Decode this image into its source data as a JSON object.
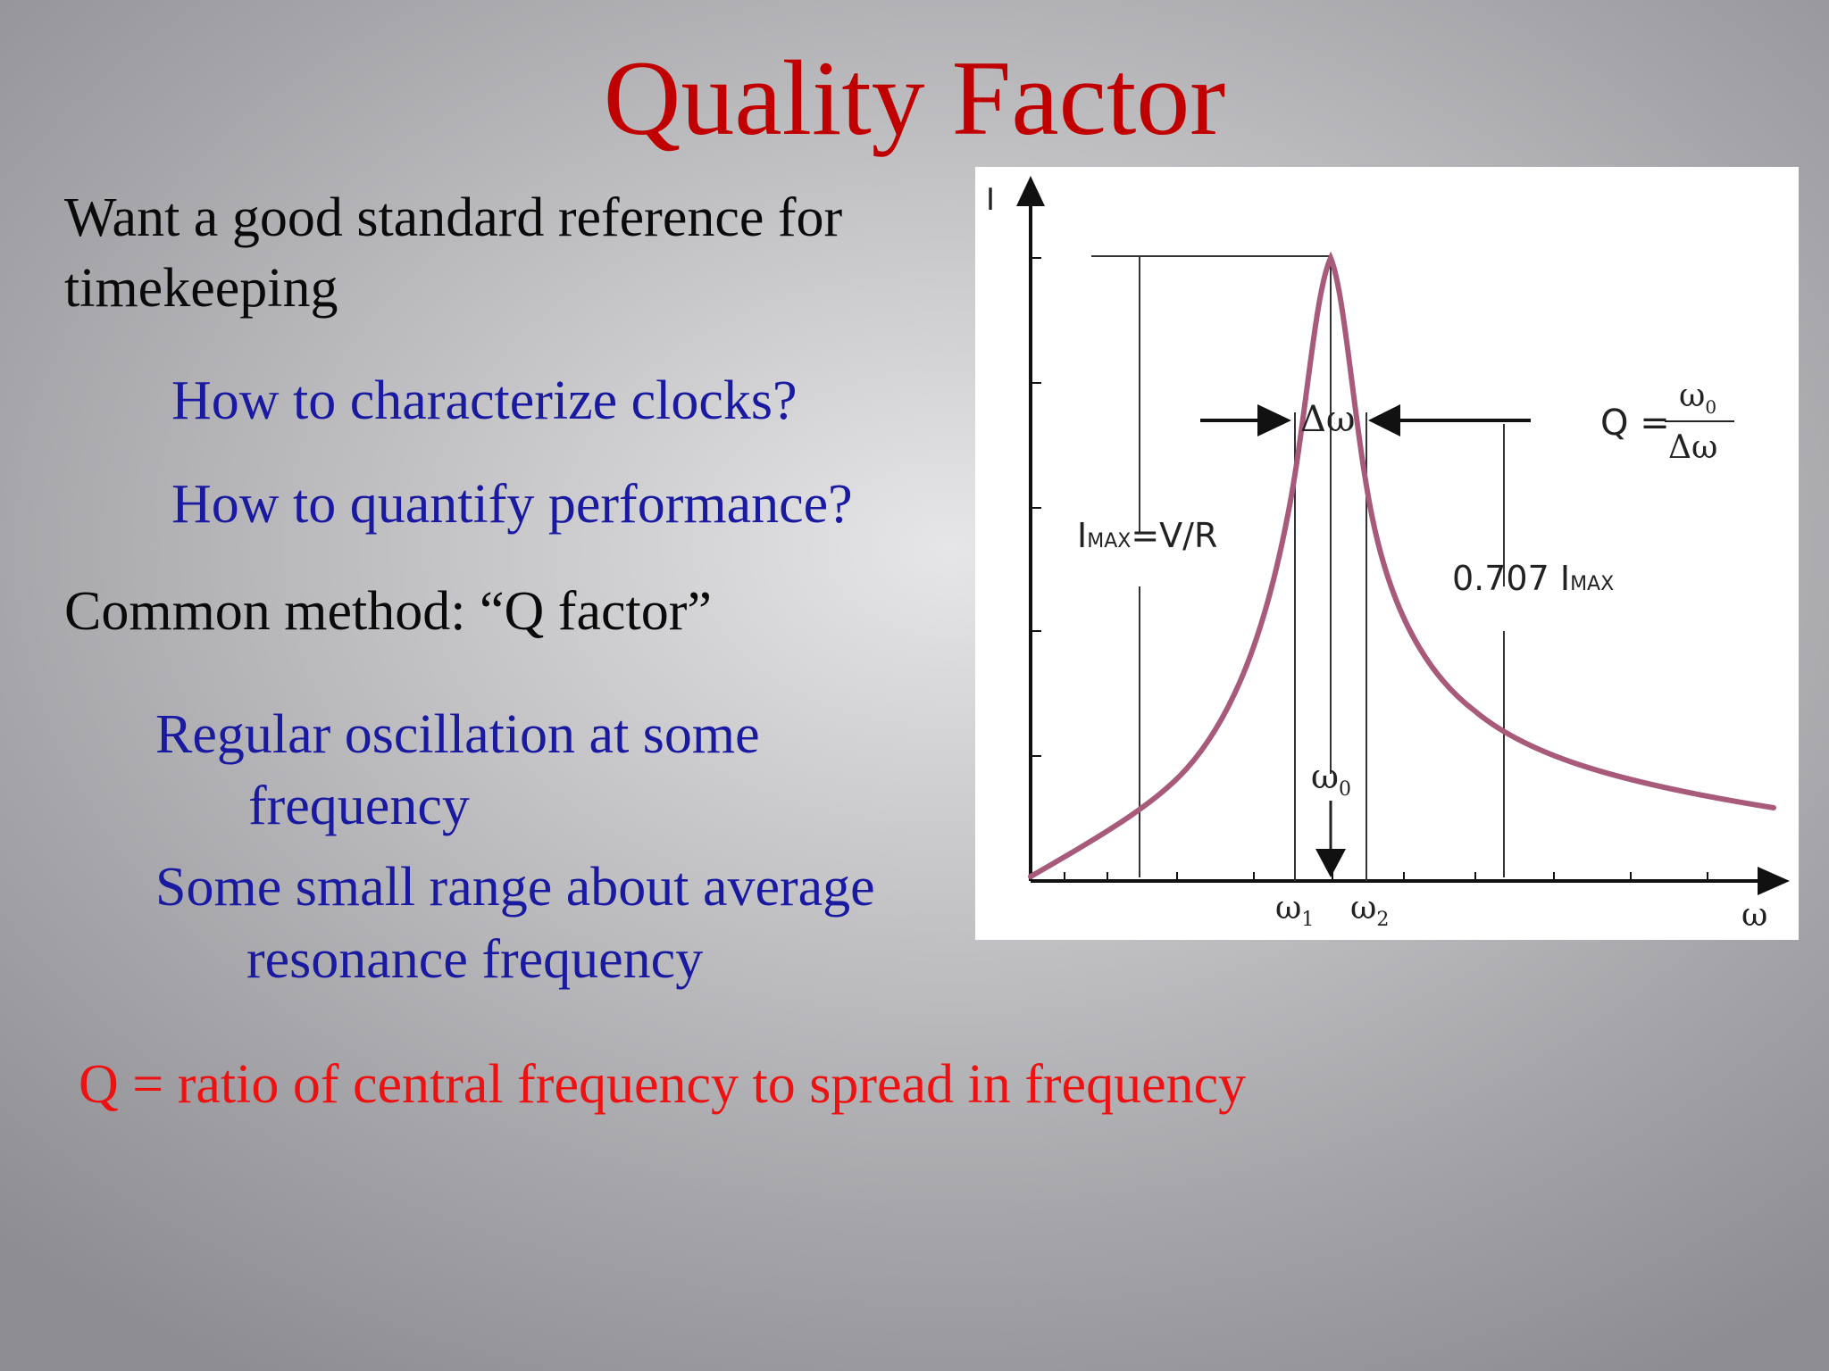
{
  "slide": {
    "title": "Quality Factor",
    "lines": {
      "intro_1": "Want a good standard reference for",
      "intro_2": "timekeeping",
      "q1": "How to characterize clocks?",
      "q2": "How to quantify performance?",
      "method": "Common method: “Q factor”",
      "b1_1": "Regular oscillation at some",
      "b1_2": "frequency",
      "b2_1": "Some small range about average",
      "b2_2": "resonance frequency",
      "conclusion": "Q = ratio of central frequency to spread in frequency"
    }
  },
  "figure": {
    "y_axis_label": "I",
    "x_axis_label": "ω",
    "imax_label": {
      "main": "I",
      "sub": "MAX",
      "rest": "=V/R"
    },
    "half_label": {
      "main": "0.707 I",
      "sub": "MAX"
    },
    "delta_label": "Δω",
    "omega0": {
      "main": "ω",
      "sub": "0"
    },
    "omega1": {
      "main": "ω",
      "sub": "1"
    },
    "omega2": {
      "main": "ω",
      "sub": "2"
    },
    "q_formula": {
      "lhs": "Q =",
      "numerator": {
        "main": "ω",
        "sub": "0"
      },
      "denominator": "Δω"
    },
    "colors": {
      "curve": "#a85a7a",
      "axes": "#111111",
      "guides": "#333333"
    }
  }
}
